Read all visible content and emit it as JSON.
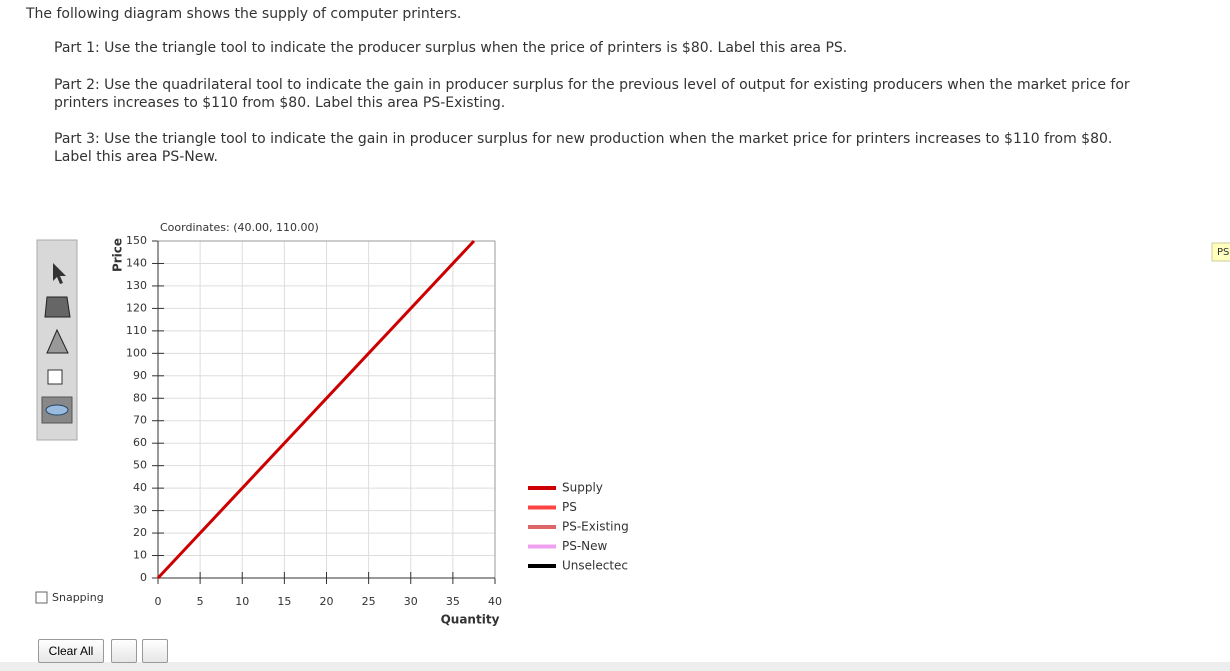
{
  "question": {
    "intro": "The following diagram shows the supply of computer printers.",
    "parts": [
      "Part 1: Use the triangle tool to indicate the producer surplus when the price of printers is $80. Label this area PS.",
      "Part 2: Use the quadrilateral tool to indicate the gain in producer surplus for the previous level of output for existing producers when the market price for printers increases to $110 from $80. Label this area PS-Existing.",
      "Part 3: Use the triangle tool to indicate the gain in producer surplus for new production when the market price for printers increases to $110 from $80. Label this area PS-New."
    ]
  },
  "chart_data": {
    "type": "line",
    "annotation": "Coordinates: (40.00, 110.00)",
    "x_label": "Quantity",
    "y_label": "Price",
    "x": [
      0,
      37.5
    ],
    "series": [
      {
        "name": "Supply",
        "color": "#cc0000",
        "values": [
          0,
          150
        ]
      }
    ],
    "tool_labels": [
      {
        "name": "PS",
        "color": "#ff4444"
      },
      {
        "name": "PS-Existing",
        "color": "#dd6666"
      },
      {
        "name": "PS-New",
        "color": "#f0a0f0"
      },
      {
        "name": "Unselectec",
        "color": "#000000"
      }
    ],
    "xlim": [
      0,
      40
    ],
    "ylim": [
      0,
      150
    ],
    "xticks": [
      0,
      5,
      10,
      15,
      20,
      25,
      30,
      35,
      40
    ],
    "yticks": [
      0,
      10,
      20,
      30,
      40,
      50,
      60,
      70,
      80,
      90,
      100,
      110,
      120,
      130,
      140,
      150
    ],
    "grid": true,
    "legend": "right"
  },
  "toolbar": {
    "snapping": "Snapping",
    "clear": "Clear All"
  },
  "tag": "PS"
}
